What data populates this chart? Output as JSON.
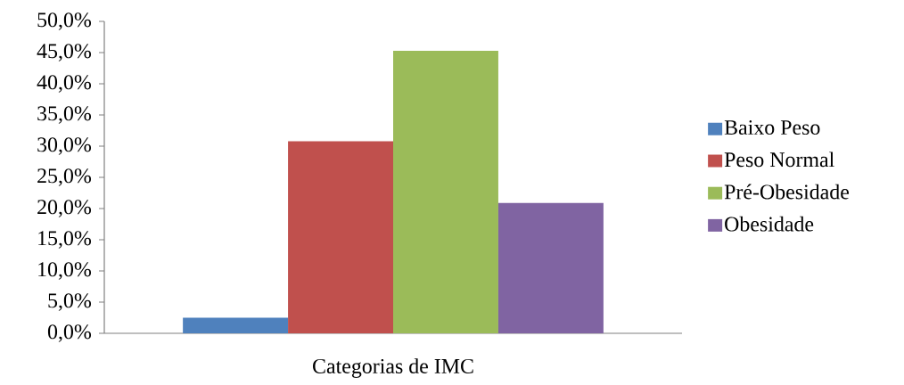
{
  "chart_data": {
    "type": "bar",
    "categories": [
      "Categorias de IMC"
    ],
    "series": [
      {
        "name": "Baixo Peso",
        "color": "#4f81bd",
        "values": [
          2.5
        ]
      },
      {
        "name": "Peso Normal",
        "color": "#c0504d",
        "values": [
          30.8
        ]
      },
      {
        "name": "Pré-Obesidade",
        "color": "#9bbb59",
        "values": [
          45.3
        ]
      },
      {
        "name": "Obesidade",
        "color": "#8064a2",
        "values": [
          20.9
        ]
      }
    ],
    "ylim": [
      0,
      50
    ],
    "yticks": [
      {
        "value": 0,
        "label": "0,0%"
      },
      {
        "value": 5,
        "label": "5,0%"
      },
      {
        "value": 10,
        "label": "10,0%"
      },
      {
        "value": 15,
        "label": "15,0%"
      },
      {
        "value": 20,
        "label": "20,0%"
      },
      {
        "value": 25,
        "label": "25,0%"
      },
      {
        "value": 30,
        "label": "30,0%"
      },
      {
        "value": 35,
        "label": "35,0%"
      },
      {
        "value": 40,
        "label": "40,0%"
      },
      {
        "value": 45,
        "label": "45,0%"
      },
      {
        "value": 50,
        "label": "50,0%"
      }
    ],
    "grid": false,
    "legend": "right"
  }
}
